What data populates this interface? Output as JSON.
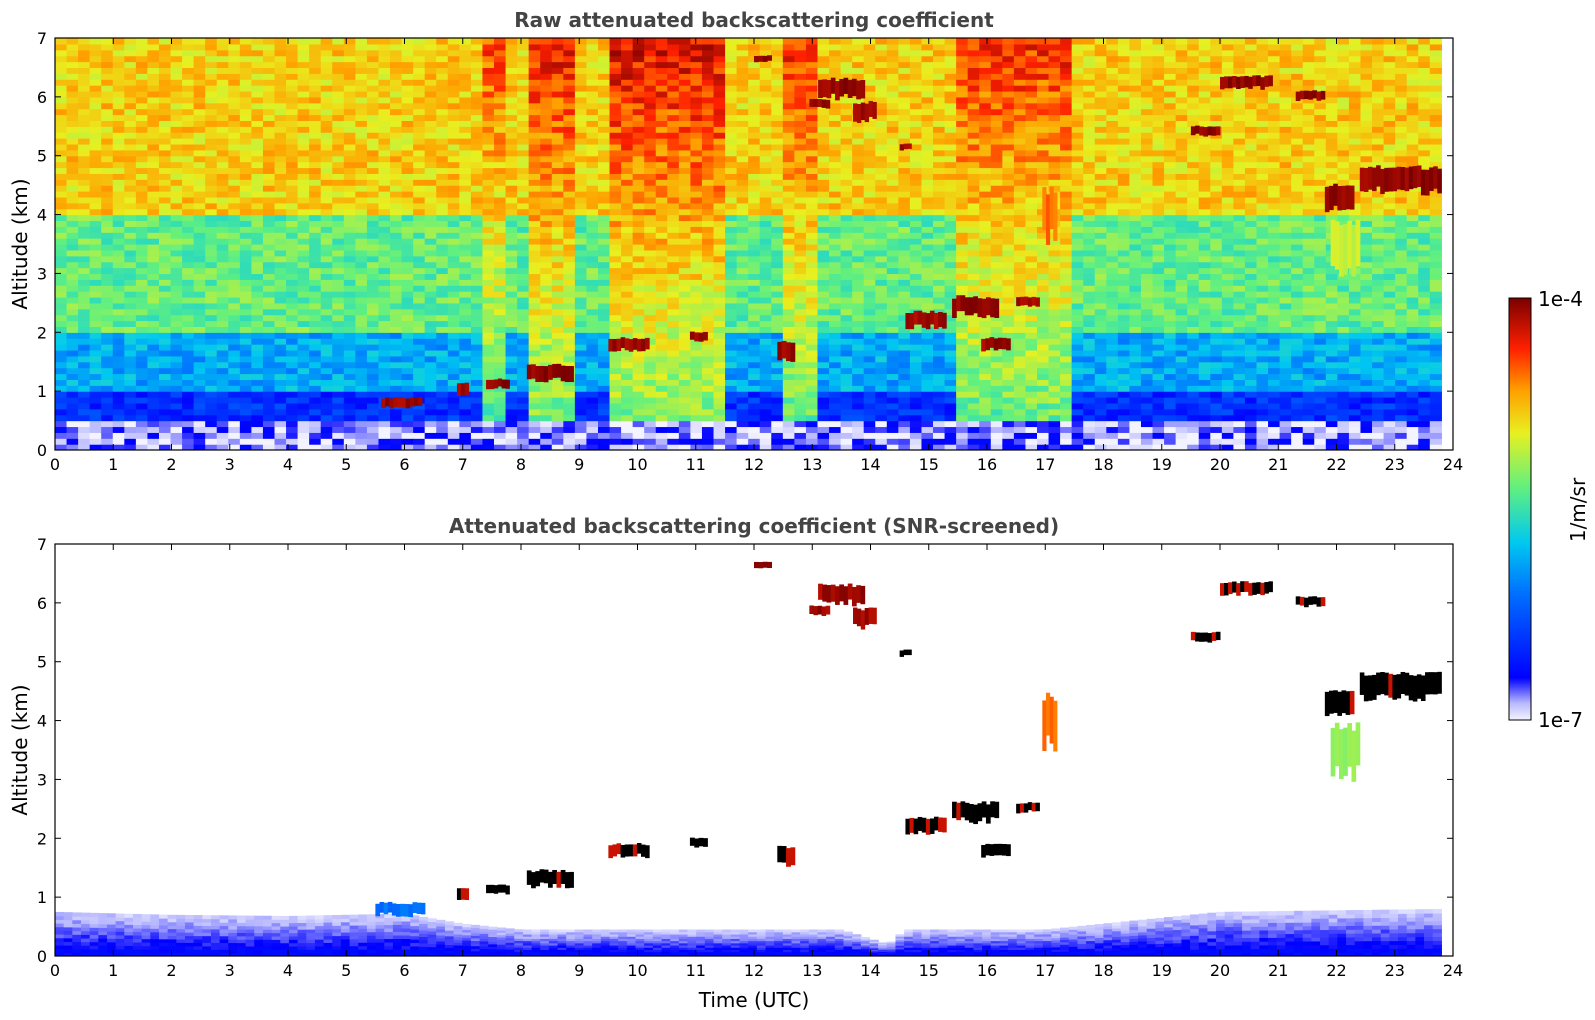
{
  "chart_data": [
    {
      "type": "heatmap",
      "title": "Raw attenuated backscattering coefficient",
      "xlabel": "",
      "ylabel": "Altitude (km)",
      "xlim": [
        0,
        24
      ],
      "ylim": [
        0,
        7
      ],
      "x_ticks": [
        0,
        1,
        2,
        3,
        4,
        5,
        6,
        7,
        8,
        9,
        10,
        11,
        12,
        13,
        14,
        15,
        16,
        17,
        18,
        19,
        20,
        21,
        22,
        23,
        24
      ],
      "y_ticks": [
        0,
        1,
        2,
        3,
        4,
        5,
        6,
        7
      ],
      "data_extent_hours": [
        0,
        23.8
      ],
      "background_layers": [
        {
          "alt_max_km": 0.45,
          "level": 0.05
        },
        {
          "alt_max_km": 1.0,
          "level": 0.18
        },
        {
          "alt_max_km": 2.0,
          "level": 0.38
        },
        {
          "alt_max_km": 4.0,
          "level": 0.55
        },
        {
          "alt_max_km": 7.0,
          "level": 0.72
        }
      ],
      "noise_columns": [
        {
          "t0": 7.3,
          "t1": 7.7,
          "level": 0.85
        },
        {
          "t0": 8.2,
          "t1": 9.0,
          "level": 0.9
        },
        {
          "t0": 9.5,
          "t1": 11.5,
          "level": 0.92
        },
        {
          "t0": 12.5,
          "t1": 13.0,
          "level": 0.88
        },
        {
          "t0": 15.5,
          "t1": 17.5,
          "level": 0.88
        }
      ],
      "features": [
        {
          "t0": 5.6,
          "t1": 6.3,
          "z0": 0.72,
          "z1": 0.88,
          "level": 0.97
        },
        {
          "t0": 6.9,
          "t1": 7.1,
          "z0": 0.95,
          "z1": 1.15,
          "level": 0.97
        },
        {
          "t0": 7.4,
          "t1": 7.8,
          "z0": 1.05,
          "z1": 1.2,
          "level": 0.98
        },
        {
          "t0": 8.1,
          "t1": 8.9,
          "z0": 1.2,
          "z1": 1.45,
          "level": 0.98
        },
        {
          "t0": 9.5,
          "t1": 10.2,
          "z0": 1.7,
          "z1": 1.9,
          "level": 0.97
        },
        {
          "t0": 10.9,
          "t1": 11.2,
          "z0": 1.85,
          "z1": 2.0,
          "level": 0.97
        },
        {
          "t0": 12.4,
          "t1": 12.7,
          "z0": 1.55,
          "z1": 1.85,
          "level": 0.97
        },
        {
          "t0": 14.6,
          "t1": 15.3,
          "z0": 2.1,
          "z1": 2.35,
          "level": 0.97
        },
        {
          "t0": 15.4,
          "t1": 16.2,
          "z0": 2.3,
          "z1": 2.6,
          "level": 0.98
        },
        {
          "t0": 16.5,
          "t1": 16.9,
          "z0": 2.45,
          "z1": 2.6,
          "level": 0.97
        },
        {
          "t0": 15.9,
          "t1": 16.4,
          "z0": 1.7,
          "z1": 1.9,
          "level": 0.97
        },
        {
          "t0": 16.95,
          "t1": 17.2,
          "z0": 3.6,
          "z1": 4.4,
          "level": 0.82
        },
        {
          "t0": 12.0,
          "t1": 12.3,
          "z0": 6.6,
          "z1": 6.7,
          "level": 0.97
        },
        {
          "t0": 13.1,
          "t1": 13.9,
          "z0": 6.0,
          "z1": 6.3,
          "level": 0.98
        },
        {
          "t0": 12.95,
          "t1": 13.3,
          "z0": 5.8,
          "z1": 5.95,
          "level": 0.97
        },
        {
          "t0": 13.7,
          "t1": 14.1,
          "z0": 5.6,
          "z1": 5.9,
          "level": 0.97
        },
        {
          "t0": 14.5,
          "t1": 14.7,
          "z0": 5.1,
          "z1": 5.2,
          "level": 0.97
        },
        {
          "t0": 19.5,
          "t1": 20.0,
          "z0": 5.35,
          "z1": 5.5,
          "level": 0.98
        },
        {
          "t0": 20.0,
          "t1": 20.9,
          "z0": 6.15,
          "z1": 6.35,
          "level": 0.98
        },
        {
          "t0": 21.3,
          "t1": 21.8,
          "z0": 5.95,
          "z1": 6.1,
          "level": 0.98
        },
        {
          "t0": 21.8,
          "t1": 22.3,
          "z0": 4.1,
          "z1": 4.5,
          "level": 0.98
        },
        {
          "t0": 22.4,
          "t1": 23.8,
          "z0": 4.4,
          "z1": 4.8,
          "level": 0.98
        },
        {
          "t0": 21.9,
          "t1": 22.4,
          "z0": 3.1,
          "z1": 3.9,
          "level": 0.65
        }
      ]
    },
    {
      "type": "heatmap",
      "title": "Attenuated backscattering coefficient (SNR-screened)",
      "xlabel": "Time (UTC)",
      "ylabel": "Altitude (km)",
      "xlim": [
        0,
        24
      ],
      "ylim": [
        0,
        7
      ],
      "x_ticks": [
        0,
        1,
        2,
        3,
        4,
        5,
        6,
        7,
        8,
        9,
        10,
        11,
        12,
        13,
        14,
        15,
        16,
        17,
        18,
        19,
        20,
        21,
        22,
        23,
        24
      ],
      "y_ticks": [
        0,
        1,
        2,
        3,
        4,
        5,
        6,
        7
      ],
      "data_extent_hours": [
        0,
        23.8
      ],
      "boundary_layer_top_km": [
        [
          0,
          0.75
        ],
        [
          2,
          0.7
        ],
        [
          4,
          0.68
        ],
        [
          6,
          0.72
        ],
        [
          7,
          0.55
        ],
        [
          8,
          0.45
        ],
        [
          9,
          0.45
        ],
        [
          12,
          0.45
        ],
        [
          13.5,
          0.45
        ],
        [
          14.3,
          0.2
        ],
        [
          14.6,
          0.45
        ],
        [
          17,
          0.45
        ],
        [
          18,
          0.55
        ],
        [
          20,
          0.75
        ],
        [
          23.8,
          0.8
        ]
      ],
      "features": [
        {
          "t0": 5.5,
          "t1": 6.35,
          "z0": 0.7,
          "z1": 0.9,
          "level": 0.3
        },
        {
          "t0": 6.9,
          "t1": 7.1,
          "z0": 0.95,
          "z1": 1.15,
          "level": 1.0
        },
        {
          "t0": 7.4,
          "t1": 7.8,
          "z0": 1.05,
          "z1": 1.2,
          "level": 1.0
        },
        {
          "t0": 8.1,
          "t1": 8.9,
          "z0": 1.2,
          "z1": 1.45,
          "level": 1.0
        },
        {
          "t0": 9.5,
          "t1": 10.2,
          "z0": 1.7,
          "z1": 1.9,
          "level": 1.0
        },
        {
          "t0": 10.9,
          "t1": 11.2,
          "z0": 1.85,
          "z1": 2.0,
          "level": 1.0
        },
        {
          "t0": 12.4,
          "t1": 12.7,
          "z0": 1.55,
          "z1": 1.85,
          "level": 1.0
        },
        {
          "t0": 14.6,
          "t1": 15.3,
          "z0": 2.1,
          "z1": 2.35,
          "level": 1.0
        },
        {
          "t0": 15.4,
          "t1": 16.2,
          "z0": 2.3,
          "z1": 2.6,
          "level": 1.0
        },
        {
          "t0": 16.5,
          "t1": 16.9,
          "z0": 2.45,
          "z1": 2.6,
          "level": 1.0
        },
        {
          "t0": 15.9,
          "t1": 16.4,
          "z0": 1.7,
          "z1": 1.9,
          "level": 1.0
        },
        {
          "t0": 16.95,
          "t1": 17.2,
          "z0": 3.6,
          "z1": 4.4,
          "level": 0.82
        },
        {
          "t0": 12.0,
          "t1": 12.3,
          "z0": 6.6,
          "z1": 6.7,
          "level": 0.97
        },
        {
          "t0": 13.1,
          "t1": 13.9,
          "z0": 6.0,
          "z1": 6.3,
          "level": 0.97
        },
        {
          "t0": 12.95,
          "t1": 13.3,
          "z0": 5.8,
          "z1": 5.95,
          "level": 0.97
        },
        {
          "t0": 13.7,
          "t1": 14.1,
          "z0": 5.6,
          "z1": 5.9,
          "level": 0.97
        },
        {
          "t0": 14.5,
          "t1": 14.7,
          "z0": 5.1,
          "z1": 5.2,
          "level": 1.0
        },
        {
          "t0": 19.5,
          "t1": 20.0,
          "z0": 5.35,
          "z1": 5.5,
          "level": 1.0
        },
        {
          "t0": 20.0,
          "t1": 20.9,
          "z0": 6.15,
          "z1": 6.35,
          "level": 1.0
        },
        {
          "t0": 21.3,
          "t1": 21.8,
          "z0": 5.95,
          "z1": 6.1,
          "level": 1.0
        },
        {
          "t0": 21.8,
          "t1": 22.3,
          "z0": 4.1,
          "z1": 4.5,
          "level": 1.0
        },
        {
          "t0": 22.4,
          "t1": 23.8,
          "z0": 4.4,
          "z1": 4.8,
          "level": 1.0
        },
        {
          "t0": 21.9,
          "t1": 22.4,
          "z0": 3.1,
          "z1": 3.9,
          "level": 0.6
        }
      ]
    }
  ],
  "colorbar": {
    "max_label": "1e-4",
    "min_label": "1e-7",
    "unit_label": "1/m/sr",
    "stops": [
      "#ffffff",
      "#0000ff",
      "#00bfff",
      "#7fff7f",
      "#ffd700",
      "#ff4500",
      "#8b0000"
    ]
  }
}
